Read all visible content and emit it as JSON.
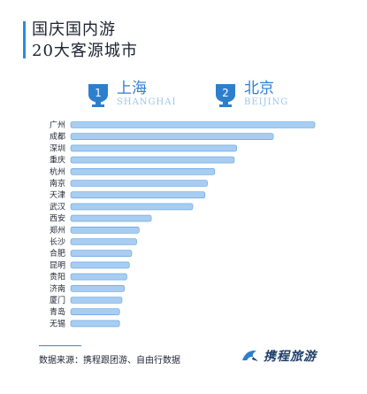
{
  "header": {
    "title_line1": "国庆国内游",
    "title_line2": "20大客源城市"
  },
  "badges": [
    {
      "rank": "1",
      "name_cn": "上海",
      "name_en": "SHANGHAI"
    },
    {
      "rank": "2",
      "name_cn": "北京",
      "name_en": "BEIJING"
    }
  ],
  "chart_data": {
    "type": "bar",
    "orientation": "horizontal",
    "categories": [
      "广州",
      "成都",
      "深圳",
      "重庆",
      "杭州",
      "南京",
      "天津",
      "武汉",
      "西安",
      "郑州",
      "长沙",
      "合肥",
      "昆明",
      "贵阳",
      "济南",
      "厦门",
      "青岛",
      "无锡"
    ],
    "values": [
      100,
      83,
      68,
      67,
      59,
      56,
      55,
      50,
      33,
      28,
      27,
      25,
      24,
      23,
      22,
      21,
      20,
      20
    ],
    "value_scale": "relative, no axis printed",
    "grid": false,
    "colors": {
      "bar": "#a9cdf1",
      "bar_edge": "#5aa0e0",
      "label": "#1f2433"
    }
  },
  "footer": {
    "source": "数据来源：携程跟团游、自由行数据",
    "brand": "携程旅游"
  },
  "colors": {
    "accent": "#2d8bd9",
    "text": "#1d2230"
  }
}
